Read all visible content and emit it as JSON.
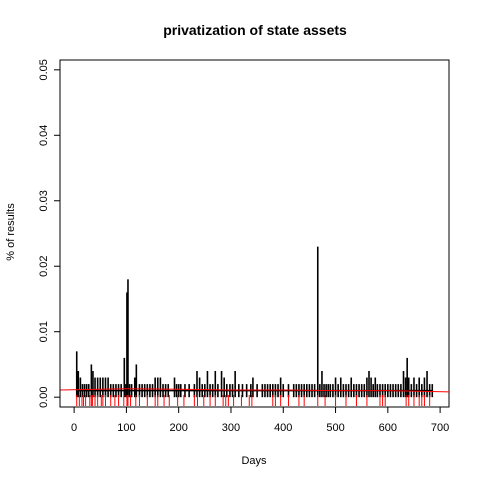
{
  "chart_data": {
    "type": "bar",
    "title": "privatization of state assets",
    "xlabel": "Days",
    "ylabel": "% of results",
    "xlim": [
      -27,
      717
    ],
    "ylim": [
      -0.0015,
      0.0515
    ],
    "x_ticks": [
      0,
      100,
      200,
      300,
      400,
      500,
      600,
      700
    ],
    "y_ticks": [
      0.0,
      0.01,
      0.02,
      0.03,
      0.04,
      0.05
    ],
    "y_tick_labels": [
      "0.00",
      "0.01",
      "0.02",
      "0.03",
      "0.04",
      "0.05"
    ],
    "grid": false,
    "legend": "none",
    "colors": {
      "bars": "#000000",
      "trend": "#ff0000",
      "rug": "#ff0000",
      "axes": "#000000"
    },
    "series": [
      {
        "values": [
          [
            5,
            0.007
          ],
          [
            8,
            0.004
          ],
          [
            12,
            0.003
          ],
          [
            16,
            0.002
          ],
          [
            20,
            0.002
          ],
          [
            24,
            0.002
          ],
          [
            28,
            0.002
          ],
          [
            33,
            0.005
          ],
          [
            36,
            0.004
          ],
          [
            40,
            0.003
          ],
          [
            45,
            0.003
          ],
          [
            50,
            0.003
          ],
          [
            55,
            0.003
          ],
          [
            60,
            0.003
          ],
          [
            65,
            0.003
          ],
          [
            70,
            0.002
          ],
          [
            75,
            0.002
          ],
          [
            80,
            0.002
          ],
          [
            85,
            0.002
          ],
          [
            90,
            0.002
          ],
          [
            96,
            0.006
          ],
          [
            99,
            0.002
          ],
          [
            101,
            0.016
          ],
          [
            103,
            0.018
          ],
          [
            106,
            0.002
          ],
          [
            110,
            0.002
          ],
          [
            116,
            0.003
          ],
          [
            119,
            0.005
          ],
          [
            125,
            0.002
          ],
          [
            130,
            0.002
          ],
          [
            135,
            0.002
          ],
          [
            140,
            0.002
          ],
          [
            145,
            0.002
          ],
          [
            150,
            0.002
          ],
          [
            155,
            0.003
          ],
          [
            160,
            0.003
          ],
          [
            165,
            0.003
          ],
          [
            170,
            0.002
          ],
          [
            175,
            0.002
          ],
          [
            180,
            0.002
          ],
          [
            192,
            0.003
          ],
          [
            196,
            0.002
          ],
          [
            200,
            0.002
          ],
          [
            204,
            0.002
          ],
          [
            212,
            0.002
          ],
          [
            220,
            0.002
          ],
          [
            230,
            0.002
          ],
          [
            235,
            0.004
          ],
          [
            240,
            0.003
          ],
          [
            245,
            0.002
          ],
          [
            250,
            0.002
          ],
          [
            255,
            0.004
          ],
          [
            260,
            0.002
          ],
          [
            265,
            0.002
          ],
          [
            270,
            0.004
          ],
          [
            275,
            0.002
          ],
          [
            282,
            0.004
          ],
          [
            287,
            0.003
          ],
          [
            292,
            0.002
          ],
          [
            298,
            0.002
          ],
          [
            303,
            0.002
          ],
          [
            308,
            0.004
          ],
          [
            315,
            0.002
          ],
          [
            322,
            0.002
          ],
          [
            330,
            0.002
          ],
          [
            338,
            0.002
          ],
          [
            342,
            0.003
          ],
          [
            350,
            0.002
          ],
          [
            360,
            0.002
          ],
          [
            365,
            0.002
          ],
          [
            370,
            0.002
          ],
          [
            375,
            0.002
          ],
          [
            380,
            0.002
          ],
          [
            385,
            0.002
          ],
          [
            390,
            0.002
          ],
          [
            395,
            0.003
          ],
          [
            400,
            0.002
          ],
          [
            410,
            0.002
          ],
          [
            420,
            0.002
          ],
          [
            425,
            0.002
          ],
          [
            430,
            0.002
          ],
          [
            435,
            0.002
          ],
          [
            440,
            0.002
          ],
          [
            445,
            0.002
          ],
          [
            450,
            0.002
          ],
          [
            455,
            0.002
          ],
          [
            460,
            0.002
          ],
          [
            466,
            0.023
          ],
          [
            470,
            0.002
          ],
          [
            474,
            0.004
          ],
          [
            478,
            0.002
          ],
          [
            482,
            0.002
          ],
          [
            486,
            0.002
          ],
          [
            490,
            0.002
          ],
          [
            495,
            0.002
          ],
          [
            500,
            0.003
          ],
          [
            505,
            0.002
          ],
          [
            510,
            0.003
          ],
          [
            515,
            0.002
          ],
          [
            520,
            0.002
          ],
          [
            525,
            0.002
          ],
          [
            530,
            0.003
          ],
          [
            535,
            0.002
          ],
          [
            540,
            0.002
          ],
          [
            545,
            0.002
          ],
          [
            550,
            0.002
          ],
          [
            555,
            0.002
          ],
          [
            560,
            0.003
          ],
          [
            564,
            0.004
          ],
          [
            568,
            0.003
          ],
          [
            572,
            0.002
          ],
          [
            576,
            0.003
          ],
          [
            580,
            0.002
          ],
          [
            585,
            0.002
          ],
          [
            590,
            0.002
          ],
          [
            595,
            0.002
          ],
          [
            600,
            0.002
          ],
          [
            605,
            0.002
          ],
          [
            610,
            0.002
          ],
          [
            615,
            0.002
          ],
          [
            620,
            0.002
          ],
          [
            625,
            0.002
          ],
          [
            630,
            0.004
          ],
          [
            634,
            0.003
          ],
          [
            637,
            0.006
          ],
          [
            640,
            0.003
          ],
          [
            645,
            0.002
          ],
          [
            650,
            0.003
          ],
          [
            655,
            0.002
          ],
          [
            660,
            0.003
          ],
          [
            665,
            0.002
          ],
          [
            670,
            0.003
          ],
          [
            675,
            0.004
          ],
          [
            680,
            0.002
          ],
          [
            685,
            0.002
          ]
        ],
        "baseline_value": 0.001
      }
    ],
    "trend_line": [
      [
        -27,
        0.0011
      ],
      [
        100,
        0.0013
      ],
      [
        200,
        0.0012
      ],
      [
        300,
        0.0011
      ],
      [
        400,
        0.0011
      ],
      [
        500,
        0.001
      ],
      [
        600,
        0.001
      ],
      [
        717,
        0.0008
      ]
    ],
    "rug_marks": [
      5,
      10,
      15,
      18,
      22,
      30,
      33,
      35,
      40,
      45,
      52,
      55,
      60,
      70,
      78,
      85,
      95,
      101,
      103,
      108,
      118,
      125,
      140,
      155,
      160,
      172,
      182,
      198,
      210,
      230,
      236,
      248,
      260,
      270,
      285,
      290,
      295,
      305,
      320,
      335,
      340,
      380,
      385,
      395,
      410,
      430,
      440,
      466,
      480,
      500,
      520,
      540,
      560,
      585,
      590,
      595,
      635,
      640,
      650,
      660,
      665,
      670,
      680
    ]
  }
}
